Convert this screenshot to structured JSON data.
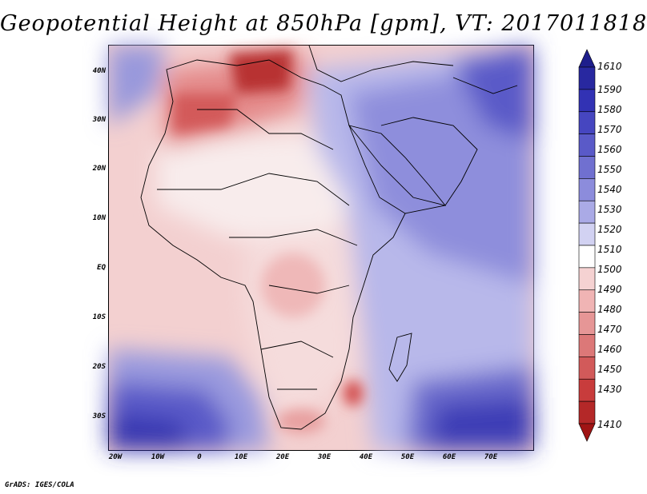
{
  "title": "Geopotential Height at 850hPa [gpm], VT: 2017011818",
  "credit": "GrADS: IGES/COLA",
  "lat_labels": [
    "40N",
    "30N",
    "20N",
    "10N",
    "EQ",
    "10S",
    "20S",
    "30S"
  ],
  "lon_labels": [
    "20W",
    "10W",
    "0",
    "10E",
    "20E",
    "30E",
    "40E",
    "50E",
    "60E",
    "70E"
  ],
  "colorbar": {
    "levels": [
      "1610",
      "1590",
      "1580",
      "1570",
      "1560",
      "1550",
      "1540",
      "1530",
      "1520",
      "1510",
      "1500",
      "1490",
      "1480",
      "1470",
      "1460",
      "1450",
      "1430",
      "1410"
    ],
    "colors": [
      "#1e1e8c",
      "#2828a0",
      "#3232b4",
      "#4646c0",
      "#5a5ac8",
      "#7070d0",
      "#8c8cdc",
      "#aaaae6",
      "#d2d2f2",
      "#ffffff",
      "#f5d2d2",
      "#f0b4b4",
      "#e69696",
      "#dc7878",
      "#d25a5a",
      "#c83c3c",
      "#b42828",
      "#a01414"
    ]
  }
}
